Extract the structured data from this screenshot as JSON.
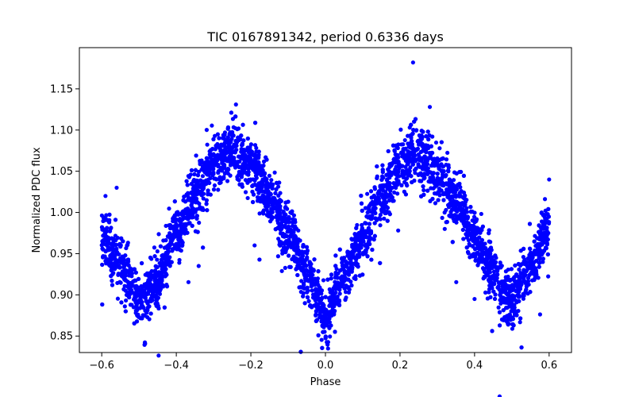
{
  "chart_data": {
    "type": "scatter",
    "title": "TIC 0167891342, period 0.6336 days",
    "xlabel": "Phase",
    "ylabel": "Normalized PDC flux",
    "xlim": [
      -0.66,
      0.66
    ],
    "ylim": [
      0.83,
      1.2
    ],
    "xticks": [
      -0.6,
      -0.4,
      -0.2,
      0.0,
      0.2,
      0.4,
      0.6
    ],
    "xtick_labels": [
      "−0.6",
      "−0.4",
      "−0.2",
      "0.0",
      "0.2",
      "0.4",
      "0.6"
    ],
    "yticks": [
      0.85,
      0.9,
      0.95,
      1.0,
      1.05,
      1.1,
      1.15
    ],
    "ytick_labels": [
      "0.85",
      "0.90",
      "0.95",
      "1.00",
      "1.05",
      "1.10",
      "1.15"
    ],
    "grid": false,
    "marker_color": "#0000ff",
    "phase_range": [
      -0.6,
      0.6
    ],
    "light_curve_profile": [
      [
        -0.6,
        0.97
      ],
      [
        -0.55,
        0.935
      ],
      [
        -0.5,
        0.895
      ],
      [
        -0.45,
        0.92
      ],
      [
        -0.4,
        0.975
      ],
      [
        -0.35,
        1.025
      ],
      [
        -0.3,
        1.06
      ],
      [
        -0.25,
        1.075
      ],
      [
        -0.2,
        1.06
      ],
      [
        -0.15,
        1.02
      ],
      [
        -0.1,
        0.975
      ],
      [
        -0.05,
        0.925
      ],
      [
        0.0,
        0.875
      ],
      [
        0.05,
        0.92
      ],
      [
        0.1,
        0.97
      ],
      [
        0.15,
        1.02
      ],
      [
        0.2,
        1.06
      ],
      [
        0.25,
        1.07
      ],
      [
        0.3,
        1.05
      ],
      [
        0.35,
        1.015
      ],
      [
        0.4,
        0.97
      ],
      [
        0.45,
        0.925
      ],
      [
        0.5,
        0.89
      ],
      [
        0.55,
        0.93
      ],
      [
        0.6,
        0.985
      ]
    ],
    "outliers": [
      {
        "x": 0.235,
        "y": 1.182
      },
      {
        "x": 0.28,
        "y": 1.128
      },
      {
        "x": -0.24,
        "y": 1.131
      },
      {
        "x": 0.6,
        "y": 1.04
      },
      {
        "x": -0.59,
        "y": 1.02
      },
      {
        "x": -0.56,
        "y": 1.03
      },
      {
        "x": -0.34,
        "y": 0.935
      },
      {
        "x": 0.4,
        "y": 0.895
      },
      {
        "x": -0.19,
        "y": 0.96
      },
      {
        "x": 0.32,
        "y": 0.98
      }
    ]
  }
}
